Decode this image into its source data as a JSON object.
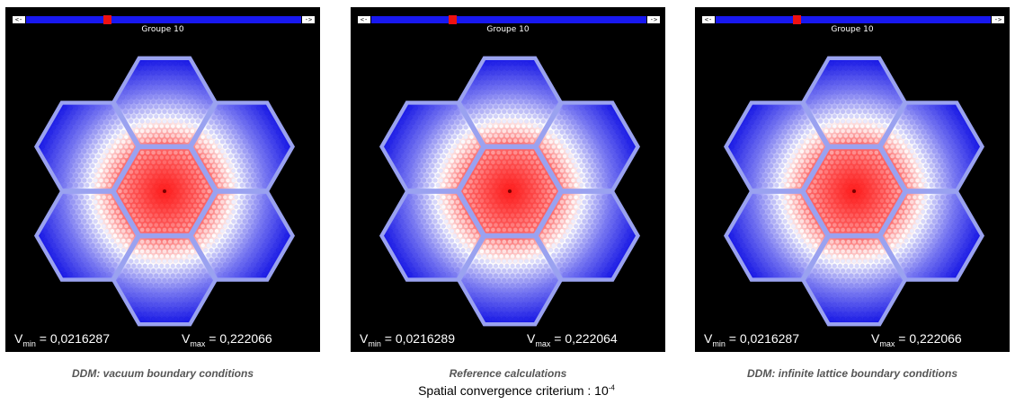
{
  "slider": {
    "left_label": "<-",
    "right_label": "->",
    "position": 0.28
  },
  "group_label": "Groupe 10",
  "colors": {
    "background": "#000000",
    "assembly_frame": "#9aa2f0",
    "high": "#ff1e1e",
    "mid": "#ffffff",
    "low": "#1414e6"
  },
  "panels": [
    {
      "vmin_symbol": "V",
      "vmin_sub": "min",
      "vmin_value": "= 0,0216287",
      "vmax_symbol": "V",
      "vmax_sub": "max",
      "vmax_value": "= 0,222066",
      "caption": "DDM: vacuum boundary conditions"
    },
    {
      "vmin_symbol": "V",
      "vmin_sub": "min",
      "vmin_value": "= 0,0216289",
      "vmax_symbol": "V",
      "vmax_sub": "max",
      "vmax_value": "= 0,222064",
      "caption": "Reference calculations"
    },
    {
      "vmin_symbol": "V",
      "vmin_sub": "min",
      "vmin_value": "= 0,0216287",
      "vmax_symbol": "V",
      "vmax_sub": "max",
      "vmax_value": "= 0,222066",
      "caption": "DDM: infinite lattice boundary conditions"
    }
  ],
  "footer": {
    "text": "Spatial convergence criterium : 10",
    "exponent": "-4"
  }
}
